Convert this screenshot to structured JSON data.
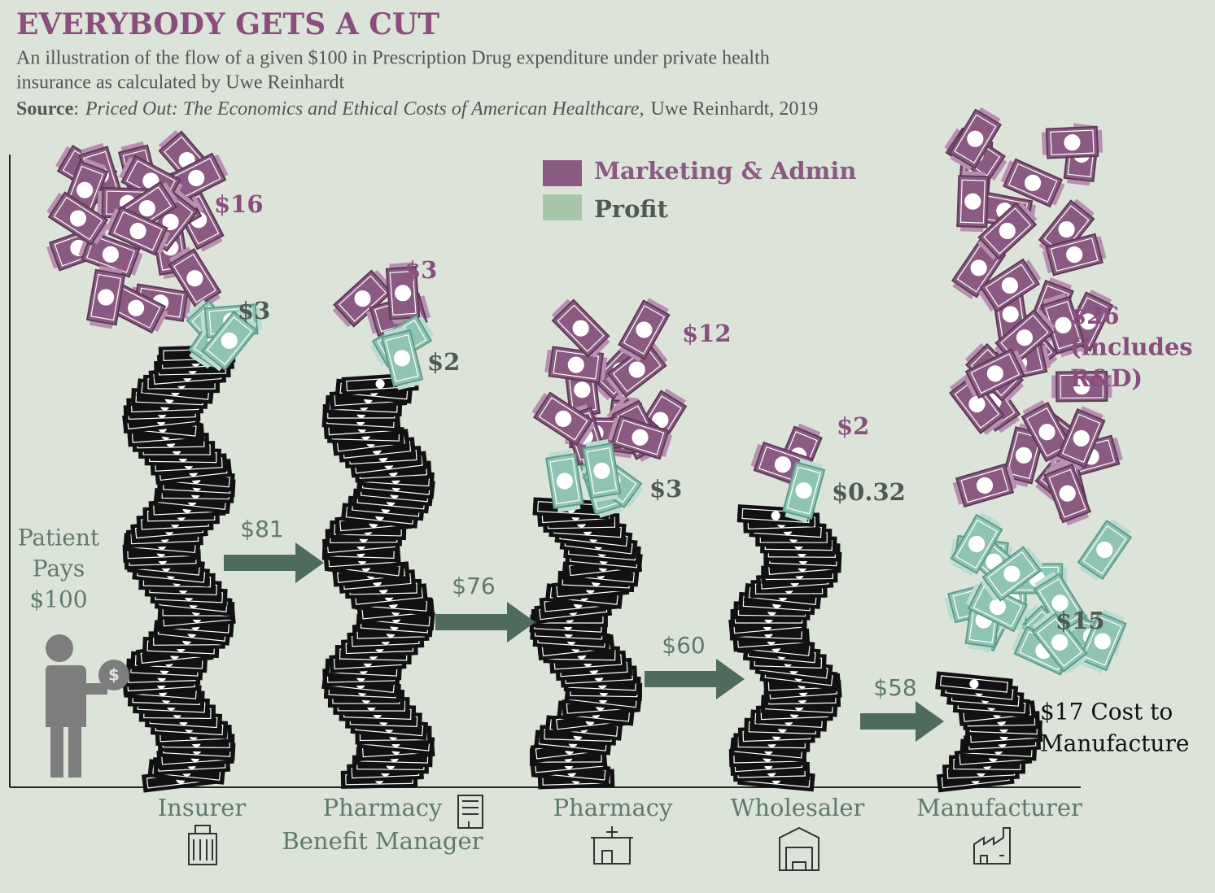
{
  "header": {
    "title": "EVERYBODY GETS A CUT",
    "subtitle_lines": [
      "An illustration of the flow of a given $100 in Prescription Drug expenditure under private health",
      "insurance as calculated by Uwe Reinhardt"
    ],
    "source": {
      "label": "Source",
      "separator": ":",
      "title": "Priced Out: The Economics and Ethical Costs of American Healthcare,",
      "rest": "Uwe Reinhardt, 2019"
    }
  },
  "legend": [
    {
      "label": "Marketing & Admin",
      "color": "#8a5a82"
    },
    {
      "label": "Profit",
      "color": "#a8c6aa"
    }
  ],
  "patient": {
    "lines": [
      "Patient",
      "Pays",
      "$100"
    ]
  },
  "stages": [
    {
      "name_lines": [
        "Insurer"
      ],
      "marketing_lines": [
        "$16"
      ],
      "profit": "$3"
    },
    {
      "name_lines": [
        "Pharmacy",
        "Benefit Manager"
      ],
      "marketing_lines": [
        "$3"
      ],
      "profit": "$2"
    },
    {
      "name_lines": [
        "Pharmacy"
      ],
      "marketing_lines": [
        "$12"
      ],
      "profit": "$3"
    },
    {
      "name_lines": [
        "Wholesaler"
      ],
      "marketing_lines": [
        "$2"
      ],
      "profit": "$0.32"
    },
    {
      "name_lines": [
        "Manufacturer"
      ],
      "marketing_lines": [
        "$26",
        "(includes",
        "R&D)"
      ],
      "profit": "$15",
      "cost_lines": [
        "$17 Cost to",
        "Manufacture"
      ]
    }
  ],
  "transfers": [
    "$81",
    "$76",
    "$60",
    "$58"
  ]
}
